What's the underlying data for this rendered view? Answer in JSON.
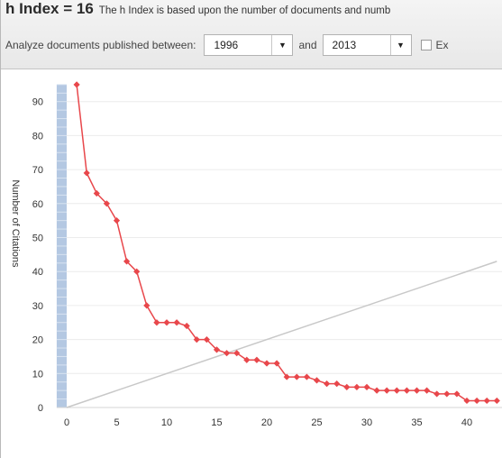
{
  "header": {
    "title": "h Index = 16",
    "description": "The h Index is based upon the number of documents and numb"
  },
  "filter": {
    "label": "Analyze documents published between:",
    "from_year": "1996",
    "and_label": "and",
    "to_year": "2013",
    "dropdown_glyph": "▼",
    "checkbox_checked": false,
    "checkbox_label": "Ex"
  },
  "chart_data": {
    "type": "line",
    "ylabel": "Number of Citations",
    "xlim": [
      0,
      43
    ],
    "ylim": [
      0,
      95
    ],
    "x_ticks": [
      0,
      5,
      10,
      15,
      20,
      25,
      30,
      35,
      40
    ],
    "y_ticks": [
      0,
      10,
      20,
      30,
      40,
      50,
      60,
      70,
      80,
      90
    ],
    "grid": true,
    "series": [
      {
        "color": "#e8474b",
        "x": [
          1,
          2,
          3,
          4,
          5,
          6,
          7,
          8,
          9,
          10,
          11,
          12,
          13,
          14,
          15,
          16,
          17,
          18,
          19,
          20,
          21,
          22,
          23,
          24,
          25,
          26,
          27,
          28,
          29,
          30,
          31,
          32,
          33,
          34,
          35,
          36,
          37,
          38,
          39,
          40,
          41,
          42,
          43
        ],
        "values": [
          95,
          69,
          63,
          60,
          55,
          43,
          40,
          30,
          25,
          25,
          25,
          24,
          20,
          20,
          17,
          16,
          16,
          14,
          14,
          13,
          13,
          9,
          9,
          9,
          8,
          7,
          7,
          6,
          6,
          6,
          5,
          5,
          5,
          5,
          5,
          5,
          4,
          4,
          4,
          2,
          2,
          2,
          2
        ]
      }
    ],
    "reference_line": {
      "x": [
        0,
        43
      ],
      "y": [
        0,
        43
      ],
      "color": "#c8c8c8"
    },
    "highlight_bar": {
      "x_range": [
        -1,
        0
      ],
      "color": "#b4c8e2"
    }
  }
}
